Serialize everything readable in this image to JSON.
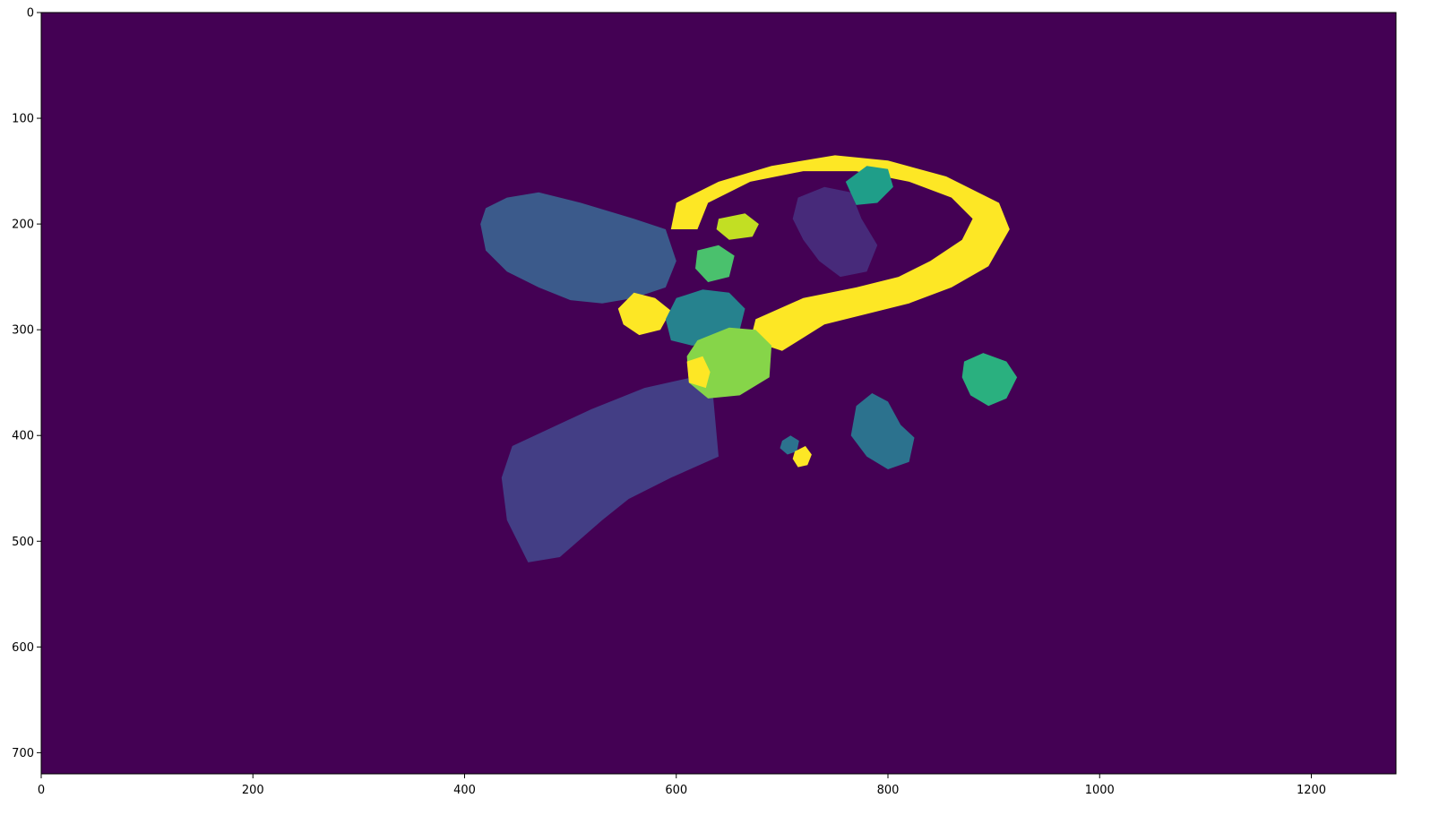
{
  "chart_data": {
    "type": "heatmap",
    "title": "",
    "xlabel": "",
    "ylabel": "",
    "xlim": [
      0,
      1280
    ],
    "ylim": [
      720,
      0
    ],
    "x_ticks": [
      0,
      200,
      400,
      600,
      800,
      1000,
      1200
    ],
    "y_ticks": [
      0,
      100,
      200,
      300,
      400,
      500,
      600,
      700
    ],
    "x_tick_labels": [
      "0",
      "200",
      "400",
      "600",
      "800",
      "1000",
      "1200"
    ],
    "y_tick_labels": [
      "0",
      "100",
      "200",
      "300",
      "400",
      "500",
      "600",
      "700"
    ],
    "colormap": "viridis",
    "background_color": "#440154",
    "segments": [
      {
        "label": "segment-blue-blob",
        "color": "#3b5a8b",
        "polygon": [
          [
            415,
            200
          ],
          [
            420,
            185
          ],
          [
            440,
            175
          ],
          [
            470,
            170
          ],
          [
            510,
            180
          ],
          [
            560,
            195
          ],
          [
            590,
            205
          ],
          [
            600,
            235
          ],
          [
            590,
            260
          ],
          [
            560,
            270
          ],
          [
            530,
            275
          ],
          [
            500,
            272
          ],
          [
            470,
            260
          ],
          [
            440,
            245
          ],
          [
            420,
            225
          ]
        ]
      },
      {
        "label": "segment-indigo-block",
        "color": "#433e85",
        "polygon": [
          [
            435,
            440
          ],
          [
            445,
            410
          ],
          [
            520,
            375
          ],
          [
            570,
            355
          ],
          [
            615,
            345
          ],
          [
            635,
            365
          ],
          [
            640,
            420
          ],
          [
            595,
            440
          ],
          [
            555,
            460
          ],
          [
            530,
            480
          ],
          [
            490,
            515
          ],
          [
            460,
            520
          ],
          [
            440,
            480
          ]
        ]
      },
      {
        "label": "segment-yellow-ring-outer",
        "color": "#fde725",
        "polygon": [
          [
            595,
            205
          ],
          [
            600,
            180
          ],
          [
            640,
            160
          ],
          [
            690,
            145
          ],
          [
            750,
            135
          ],
          [
            800,
            140
          ],
          [
            855,
            155
          ],
          [
            905,
            180
          ],
          [
            915,
            205
          ],
          [
            895,
            240
          ],
          [
            860,
            260
          ],
          [
            820,
            275
          ],
          [
            780,
            285
          ],
          [
            740,
            295
          ],
          [
            700,
            320
          ],
          [
            670,
            310
          ],
          [
            675,
            290
          ],
          [
            720,
            270
          ],
          [
            770,
            260
          ],
          [
            810,
            250
          ],
          [
            840,
            235
          ],
          [
            870,
            215
          ],
          [
            880,
            195
          ],
          [
            860,
            175
          ],
          [
            820,
            160
          ],
          [
            770,
            150
          ],
          [
            720,
            150
          ],
          [
            670,
            160
          ],
          [
            630,
            180
          ],
          [
            620,
            205
          ]
        ]
      },
      {
        "label": "segment-yellow-lower-left",
        "color": "#fde725",
        "polygon": [
          [
            545,
            280
          ],
          [
            560,
            265
          ],
          [
            580,
            270
          ],
          [
            595,
            282
          ],
          [
            585,
            300
          ],
          [
            565,
            305
          ],
          [
            550,
            295
          ]
        ]
      },
      {
        "label": "segment-dark-purple-center",
        "color": "#472a7a",
        "polygon": [
          [
            715,
            175
          ],
          [
            740,
            165
          ],
          [
            765,
            170
          ],
          [
            775,
            195
          ],
          [
            790,
            220
          ],
          [
            780,
            245
          ],
          [
            755,
            250
          ],
          [
            735,
            235
          ],
          [
            720,
            215
          ],
          [
            710,
            195
          ]
        ]
      },
      {
        "label": "segment-teal-left",
        "color": "#26828e",
        "polygon": [
          [
            590,
            290
          ],
          [
            600,
            270
          ],
          [
            625,
            262
          ],
          [
            650,
            265
          ],
          [
            665,
            280
          ],
          [
            660,
            300
          ],
          [
            640,
            312
          ],
          [
            615,
            315
          ],
          [
            595,
            310
          ]
        ]
      },
      {
        "label": "segment-light-green-center",
        "color": "#86d549",
        "polygon": [
          [
            610,
            325
          ],
          [
            620,
            310
          ],
          [
            650,
            298
          ],
          [
            675,
            300
          ],
          [
            690,
            315
          ],
          [
            688,
            345
          ],
          [
            660,
            362
          ],
          [
            630,
            365
          ],
          [
            612,
            350
          ]
        ]
      },
      {
        "label": "segment-green-small",
        "color": "#4ac16d",
        "polygon": [
          [
            620,
            225
          ],
          [
            640,
            220
          ],
          [
            655,
            230
          ],
          [
            650,
            250
          ],
          [
            630,
            255
          ],
          [
            618,
            242
          ]
        ]
      },
      {
        "label": "segment-lime-small",
        "color": "#c2df23",
        "polygon": [
          [
            640,
            195
          ],
          [
            665,
            190
          ],
          [
            678,
            200
          ],
          [
            672,
            212
          ],
          [
            650,
            215
          ],
          [
            638,
            205
          ]
        ]
      },
      {
        "label": "segment-teal-upper-right",
        "color": "#1f9e89",
        "polygon": [
          [
            760,
            160
          ],
          [
            780,
            145
          ],
          [
            800,
            148
          ],
          [
            805,
            165
          ],
          [
            790,
            180
          ],
          [
            770,
            182
          ]
        ]
      },
      {
        "label": "segment-green-right",
        "color": "#2ab07f",
        "polygon": [
          [
            872,
            330
          ],
          [
            890,
            322
          ],
          [
            912,
            330
          ],
          [
            922,
            345
          ],
          [
            912,
            365
          ],
          [
            895,
            372
          ],
          [
            878,
            362
          ],
          [
            870,
            345
          ]
        ]
      },
      {
        "label": "segment-steelblue-right",
        "color": "#2c728e",
        "polygon": [
          [
            770,
            372
          ],
          [
            785,
            360
          ],
          [
            800,
            368
          ],
          [
            812,
            390
          ],
          [
            825,
            402
          ],
          [
            820,
            425
          ],
          [
            800,
            432
          ],
          [
            780,
            420
          ],
          [
            765,
            400
          ]
        ]
      },
      {
        "label": "segment-small-teal-dot",
        "color": "#2c728e",
        "polygon": [
          [
            700,
            405
          ],
          [
            708,
            400
          ],
          [
            716,
            405
          ],
          [
            714,
            415
          ],
          [
            705,
            418
          ],
          [
            698,
            412
          ]
        ]
      },
      {
        "label": "segment-small-yellow-dot",
        "color": "#fde725",
        "polygon": [
          [
            712,
            415
          ],
          [
            722,
            410
          ],
          [
            728,
            418
          ],
          [
            724,
            428
          ],
          [
            715,
            430
          ],
          [
            710,
            422
          ]
        ]
      },
      {
        "label": "segment-yellow-small-left",
        "color": "#fde725",
        "polygon": [
          [
            610,
            330
          ],
          [
            625,
            325
          ],
          [
            632,
            340
          ],
          [
            628,
            355
          ],
          [
            612,
            350
          ]
        ]
      }
    ]
  }
}
